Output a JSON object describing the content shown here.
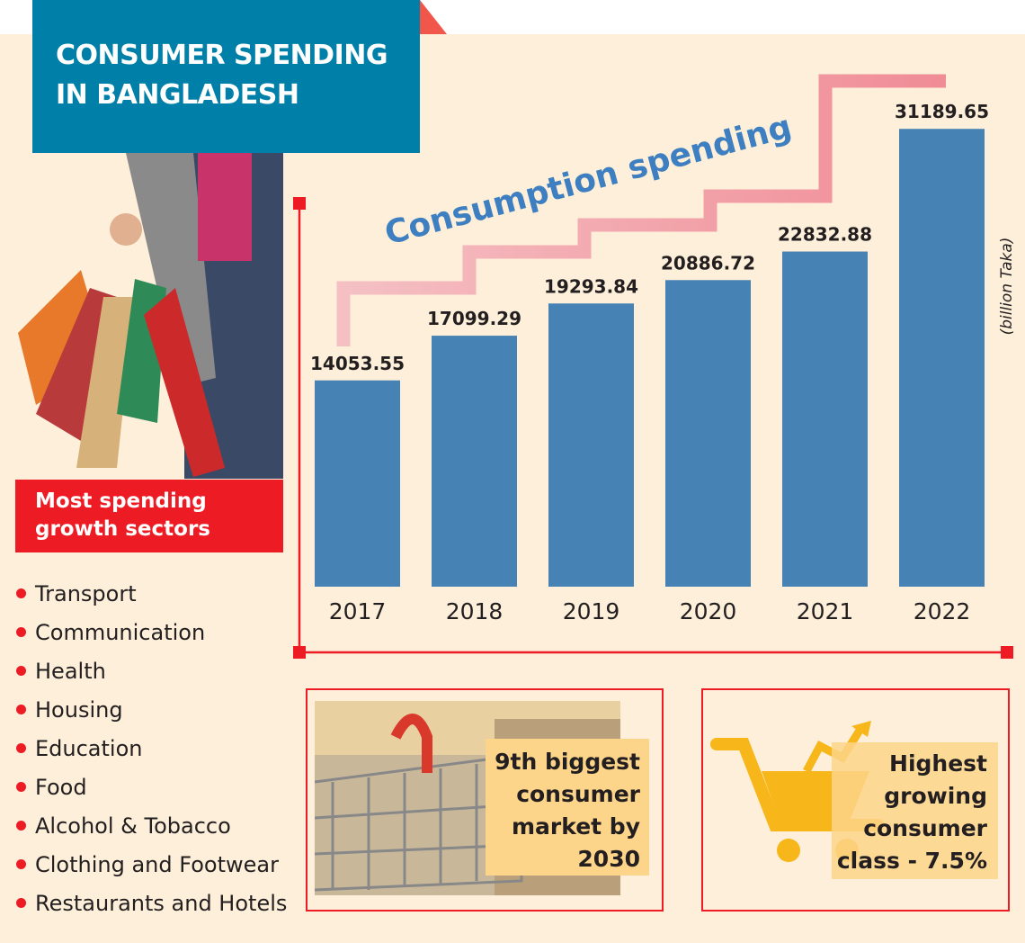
{
  "title": "CONSUMER SPENDING IN BANGLADESH",
  "chart_data": {
    "type": "bar",
    "title": "Consumption spending",
    "ylabel": "(billion Taka)",
    "categories": [
      "2017",
      "2018",
      "2019",
      "2020",
      "2021",
      "2022"
    ],
    "values": [
      14053.55,
      17099.29,
      19293.84,
      20886.72,
      22832.88,
      31189.65
    ],
    "value_labels": [
      "14053.55",
      "17099.29",
      "19293.84",
      "20886.72",
      "22832.88",
      "31189.65"
    ],
    "ylim": [
      0,
      32000
    ],
    "grid": false,
    "bar_color": "#4682b4"
  },
  "sectors": {
    "heading": "Most spending growth sectors",
    "items": [
      "Transport",
      "Communication",
      "Health",
      "Housing",
      "Education",
      "Food",
      "Alcohol & Tobacco",
      "Clothing and Footwear",
      "Restaurants and Hotels"
    ]
  },
  "facts": [
    {
      "text": "9th biggest consumer market by 2030",
      "icon": "shopping-trolley-photo"
    },
    {
      "text": "Highest growing consumer class - 7.5%",
      "icon": "cart-growth-arrow-icon"
    }
  ],
  "colors": {
    "title_bg": "#0080a8",
    "accent": "#ed1c24",
    "background": "#fdefd9",
    "bar": "#4682b4"
  }
}
